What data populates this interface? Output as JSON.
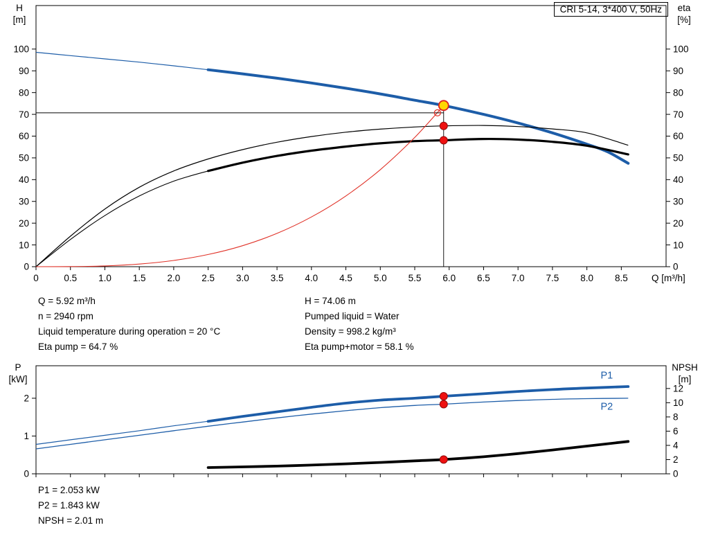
{
  "title_box": {
    "label": "CRI 5-14, 3*400 V, 50Hz"
  },
  "corner_labels": {
    "top_left": [
      "H",
      "[m]"
    ],
    "top_right": [
      "eta",
      "[%]"
    ],
    "bottom_left": [
      "P",
      "[kW]"
    ],
    "bottom_right": [
      "NPSH",
      "[m]"
    ]
  },
  "info_top": {
    "col1": [
      "Q = 5.92 m³/h",
      "n = 2940 rpm",
      "Liquid temperature during operation = 20 °C",
      "Eta pump = 64.7 %"
    ],
    "col2": [
      "H = 74.06 m",
      "Pumped liquid = Water",
      "Density = 998.2 kg/m³",
      "Eta pump+motor = 58.1 %"
    ]
  },
  "info_bottom": [
    "P1 = 2.053 kW",
    "P2 = 1.843 kW",
    "NPSH = 2.01 m"
  ],
  "colors": {
    "blue": "#1d5da8",
    "black": "#000000",
    "red": "#e03127",
    "red_dark": "#8e0b0b",
    "duty_red": "#ee1111",
    "duty_yellow": "#ffd800",
    "duty_ring": "#dd2020"
  },
  "chart_data": [
    {
      "type": "line",
      "title": "CRI 5-14, 3*400 V, 50Hz",
      "xlabel": "Q [m³/h]",
      "xlim": [
        0,
        9.15
      ],
      "x_ticks": [
        0,
        0.5,
        1,
        1.5,
        2,
        2.5,
        3,
        3.5,
        4,
        4.5,
        5,
        5.5,
        6,
        6.5,
        7,
        7.5,
        8,
        8.5
      ],
      "x_tick_labels": [
        "0",
        "0.5",
        "1.0",
        "1.5",
        "2.0",
        "2.5",
        "3.0",
        "3.5",
        "4.0",
        "4.5",
        "5.0",
        "5.5",
        "6.0",
        "6.5",
        "7.0",
        "7.5",
        "8.0",
        "8.5"
      ],
      "left_axis": {
        "label": "H [m]",
        "lim": [
          0,
          120
        ],
        "ticks": [
          0,
          10,
          20,
          30,
          40,
          50,
          60,
          70,
          80,
          90,
          100
        ]
      },
      "right_axis": {
        "label": "eta [%]",
        "lim": [
          0,
          120
        ],
        "ticks": [
          0,
          10,
          20,
          30,
          40,
          50,
          60,
          70,
          80,
          90,
          100
        ]
      },
      "series": [
        {
          "name": "pump-curve-h",
          "color": "blue",
          "axis": "left",
          "thick_from": 2.5,
          "thin_width": 1.2,
          "thick_width": 4,
          "x": [
            0,
            0.5,
            1,
            1.5,
            2,
            2.5,
            3,
            3.5,
            4,
            4.5,
            5,
            5.5,
            5.92,
            6.5,
            7,
            7.5,
            8,
            8.3,
            8.6
          ],
          "y": [
            98.5,
            97,
            95.5,
            94,
            92.3,
            90.5,
            88.6,
            86.6,
            84.4,
            82,
            79.4,
            76.5,
            74.06,
            70,
            66,
            61.5,
            56.3,
            52.8,
            47.5
          ]
        },
        {
          "name": "eta-pump-curve",
          "color": "black",
          "axis": "right",
          "width": 1.2,
          "x": [
            0,
            0.5,
            1,
            1.5,
            2,
            2.5,
            3,
            3.5,
            4,
            4.5,
            5,
            5.5,
            5.92,
            6.5,
            7,
            7.5,
            8,
            8.6
          ],
          "y": [
            0,
            14,
            26.5,
            36.5,
            44,
            49.5,
            53.8,
            57.2,
            59.8,
            61.8,
            63.2,
            64.2,
            64.7,
            64.9,
            64.4,
            63.3,
            61.5,
            55.8
          ]
        },
        {
          "name": "eta-pump-motor-curve",
          "color": "black",
          "axis": "right",
          "thick_from": 2.5,
          "thin_width": 1.1,
          "thick_width": 3.2,
          "x": [
            0,
            0.5,
            1,
            1.5,
            2,
            2.5,
            3,
            3.5,
            4,
            4.5,
            5,
            5.5,
            5.92,
            6.5,
            7,
            7.5,
            8,
            8.6
          ],
          "y": [
            0,
            12.5,
            23.5,
            32.5,
            39.3,
            44,
            47.8,
            50.9,
            53.3,
            55.2,
            56.7,
            57.7,
            58.1,
            58.7,
            58.4,
            57.4,
            55.6,
            51.6
          ]
        },
        {
          "name": "system-curve",
          "color": "red",
          "axis": "left",
          "width": 1.1,
          "x": [
            0,
            0.5,
            1,
            1.5,
            2,
            2.5,
            3,
            3.5,
            4,
            4.5,
            5,
            5.5,
            5.92
          ],
          "y": [
            0,
            0.05,
            0.36,
            1.2,
            2.86,
            5.6,
            9.65,
            15.3,
            22.85,
            32.5,
            44.6,
            59.4,
            74.06
          ]
        }
      ],
      "crosshair": {
        "q": 5.92,
        "point_h": 74.06,
        "h_line": 70.7
      },
      "markers": [
        {
          "type": "open-red",
          "q": 5.83,
          "v": 70.7,
          "axis": "left",
          "name": "requested-duty-point"
        },
        {
          "type": "red-dot",
          "q": 5.92,
          "v": 64.7,
          "axis": "right",
          "name": "eta-pump-duty-marker"
        },
        {
          "type": "red-dot",
          "q": 5.92,
          "v": 58.1,
          "axis": "right",
          "name": "eta-pump-motor-duty-marker"
        },
        {
          "type": "duty-yellow",
          "q": 5.92,
          "v": 74.06,
          "axis": "left",
          "name": "duty-point-marker"
        }
      ]
    },
    {
      "type": "line",
      "xlim": [
        0,
        9.15
      ],
      "x_ticks": [
        0,
        0.5,
        1,
        1.5,
        2,
        2.5,
        3,
        3.5,
        4,
        4.5,
        5,
        5.5,
        6,
        6.5,
        7,
        7.5,
        8,
        8.5
      ],
      "left_axis": {
        "label": "P [kW]",
        "lim": [
          0,
          2.86
        ],
        "ticks": [
          0,
          1,
          2
        ]
      },
      "right_axis": {
        "label": "NPSH [m]",
        "lim": [
          0,
          15.2
        ],
        "ticks": [
          0,
          2,
          4,
          6,
          8,
          10,
          12
        ]
      },
      "series": [
        {
          "name": "p1-curve",
          "color": "blue",
          "axis": "left",
          "thick_from": 2.5,
          "thin_width": 1.2,
          "thick_width": 3.8,
          "x": [
            0,
            0.5,
            1,
            1.5,
            2,
            2.5,
            3,
            3.5,
            4,
            4.5,
            5,
            5.5,
            5.92,
            6.5,
            7,
            7.5,
            8,
            8.6
          ],
          "y": [
            0.78,
            0.9,
            1.02,
            1.14,
            1.27,
            1.39,
            1.52,
            1.64,
            1.76,
            1.87,
            1.95,
            2.0,
            2.053,
            2.12,
            2.18,
            2.23,
            2.27,
            2.31
          ]
        },
        {
          "name": "p2-curve",
          "color": "blue",
          "axis": "left",
          "width": 1.3,
          "x": [
            0,
            0.5,
            1,
            1.5,
            2,
            2.5,
            3,
            3.5,
            4,
            4.5,
            5,
            5.5,
            5.92,
            6.5,
            7,
            7.5,
            8,
            8.6
          ],
          "y": [
            0.66,
            0.78,
            0.9,
            1.02,
            1.14,
            1.26,
            1.37,
            1.48,
            1.58,
            1.67,
            1.75,
            1.81,
            1.843,
            1.9,
            1.94,
            1.97,
            1.99,
            2.0
          ]
        },
        {
          "name": "npsh-curve",
          "color": "black",
          "axis": "right",
          "thick_from": 2.5,
          "thin_width": 1.1,
          "thick_width": 3.8,
          "x": [
            2.5,
            3,
            3.5,
            4,
            4.5,
            5,
            5.5,
            5.92,
            6.5,
            7,
            7.5,
            8,
            8.6
          ],
          "y": [
            0.88,
            0.97,
            1.08,
            1.23,
            1.4,
            1.6,
            1.82,
            2.01,
            2.4,
            2.85,
            3.35,
            3.9,
            4.55
          ]
        }
      ],
      "series_labels": [
        {
          "text": "P1",
          "q": 8.2,
          "v": 2.52,
          "axis": "left",
          "name": "p1-curve-label"
        },
        {
          "text": "P2",
          "q": 8.2,
          "v": 1.7,
          "axis": "left",
          "name": "p2-curve-label"
        }
      ],
      "markers": [
        {
          "type": "red-dot",
          "q": 5.92,
          "v": 2.053,
          "axis": "left",
          "name": "p1-duty-marker"
        },
        {
          "type": "red-dot",
          "q": 5.92,
          "v": 1.843,
          "axis": "left",
          "name": "p2-duty-marker"
        },
        {
          "type": "red-dot",
          "q": 5.92,
          "v": 2.01,
          "axis": "right",
          "name": "npsh-duty-marker"
        }
      ]
    }
  ]
}
